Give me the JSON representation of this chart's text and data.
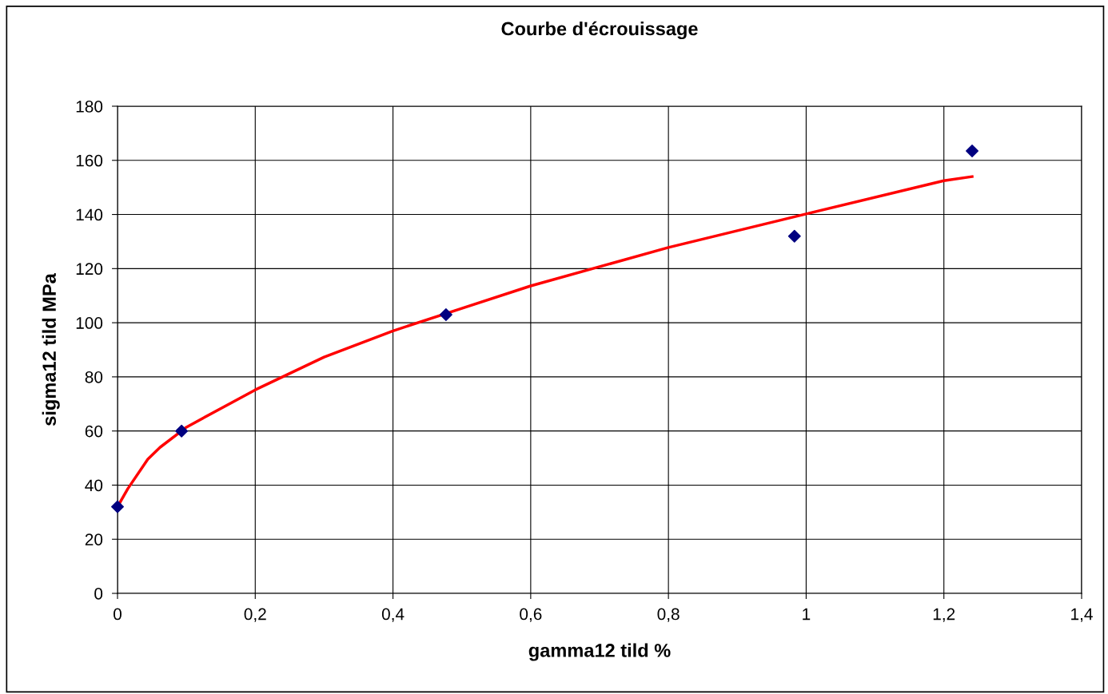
{
  "chart_data": {
    "type": "scatter",
    "title": "Courbe d'écrouissage",
    "xlabel": "gamma12 tild %",
    "ylabel": "sigma12 tild MPa",
    "xlim": [
      0,
      1.4
    ],
    "ylim": [
      0,
      180
    ],
    "xticks": [
      0,
      {
        "value": 0.2,
        "label": "0,2"
      },
      {
        "value": 0.4,
        "label": "0,4"
      },
      {
        "value": 0.6,
        "label": "0,6"
      },
      {
        "value": 0.8,
        "label": "0,8"
      },
      1,
      {
        "value": 1.2,
        "label": "1,2"
      },
      {
        "value": 1.4,
        "label": "1,4"
      }
    ],
    "yticks": [
      0,
      20,
      40,
      60,
      80,
      100,
      120,
      140,
      160,
      180
    ],
    "grid": true,
    "series": [
      {
        "color": "#000080",
        "marker": "diamond",
        "x": [
          0,
          0.093,
          0.477,
          0.983,
          1.241
        ],
        "values": [
          32,
          60,
          103,
          132,
          163.5
        ]
      },
      {
        "type": "line",
        "color": "#ff0000",
        "marker": "none",
        "line_style": "solid",
        "x": [
          0,
          0.015,
          0.044,
          0.062,
          0.093,
          0.1,
          0.2,
          0.3,
          0.4,
          0.5,
          0.6,
          0.8,
          1.0,
          1.2,
          1.241
        ],
        "values": [
          32,
          38.7,
          49.6,
          54,
          60,
          61.4,
          75.2,
          87.3,
          97,
          105.3,
          113.6,
          127.8,
          140.2,
          152.5,
          154
        ]
      }
    ]
  }
}
